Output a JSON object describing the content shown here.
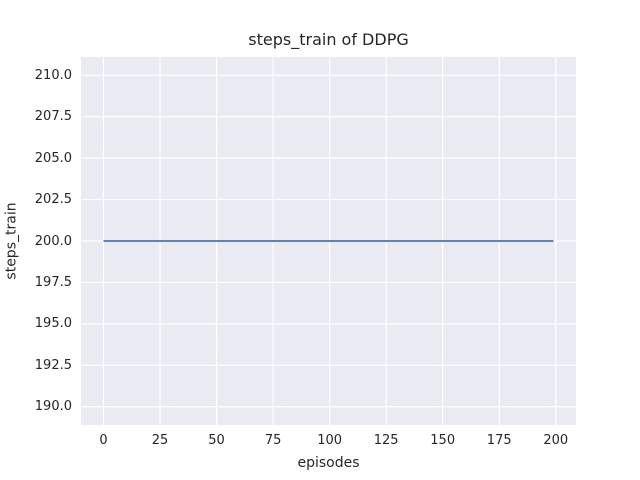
{
  "style": {
    "figure_bg": "#ffffff",
    "plot_bg": "#eaeaf2",
    "grid_color": "#ffffff",
    "text_color": "#262626",
    "line_color": "#4c72b0"
  },
  "chart_data": {
    "type": "line",
    "title": "steps_train of DDPG",
    "xlabel": "episodes",
    "ylabel": "steps_train",
    "xlim": [
      -9.95,
      208.95
    ],
    "ylim": [
      188.9,
      211.1
    ],
    "xticks": {
      "values": [
        0,
        25,
        50,
        75,
        100,
        125,
        150,
        175,
        200
      ],
      "labels": [
        "0",
        "25",
        "50",
        "75",
        "100",
        "125",
        "150",
        "175",
        "200"
      ]
    },
    "yticks": {
      "values": [
        190.0,
        192.5,
        195.0,
        197.5,
        200.0,
        202.5,
        205.0,
        207.5,
        210.0
      ],
      "labels": [
        "190.0",
        "192.5",
        "195.0",
        "197.5",
        "200.0",
        "202.5",
        "205.0",
        "207.5",
        "210.0"
      ]
    },
    "grid": true,
    "legend": false,
    "series": [
      {
        "name": "steps_train",
        "color": "#4c72b0",
        "x": [
          0,
          199
        ],
        "y": [
          200,
          200
        ],
        "note": "constant value 200 for every episode from 0 to 199"
      }
    ]
  }
}
